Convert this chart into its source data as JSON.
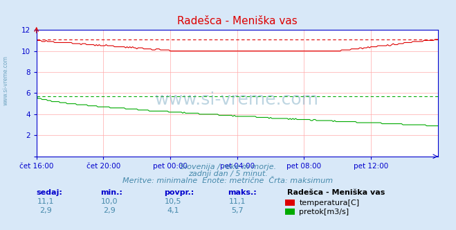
{
  "title": "Radešca - Meniška vas",
  "bg_color": "#d8e8f8",
  "plot_bg_color": "#ffffff",
  "x_labels": [
    "čet 16:00",
    "čet 20:00",
    "pet 00:00",
    "pet 04:00",
    "pet 08:00",
    "pet 12:00"
  ],
  "x_ticks_pos": [
    0,
    48,
    96,
    144,
    192,
    240
  ],
  "n_points": 289,
  "ylim": [
    0,
    12
  ],
  "yticks": [
    0,
    2,
    4,
    6,
    8,
    10,
    12
  ],
  "temp_color": "#dd0000",
  "flow_color": "#00aa00",
  "temp_max_line": 11.1,
  "flow_max_line": 5.7,
  "temp_min_line": 10.0,
  "flow_min_line": 2.9,
  "grid_color": "#ffaaaa",
  "grid_color_minor": "#ffdddd",
  "axis_color": "#0000cc",
  "tick_color": "#0000cc",
  "subtitle1": "Slovenija / reke in morje.",
  "subtitle2": "zadnji dan / 5 minut.",
  "subtitle3": "Meritve: minimalne  Enote: metrične  Črta: maksimum",
  "subtitle_color": "#4488aa",
  "table_header": [
    "sedaj:",
    "min.:",
    "povpr.:",
    "maks.:"
  ],
  "table_row1": [
    "11,1",
    "10,0",
    "10,5",
    "11,1"
  ],
  "table_row2": [
    "2,9",
    "2,9",
    "4,1",
    "5,7"
  ],
  "table_label": "Radešca - Meniška vas",
  "table_legend1": "temperatura[C]",
  "table_legend2": "pretok[m3/s]",
  "watermark": "www.si-vreme.com",
  "watermark_color": "#4488aa"
}
